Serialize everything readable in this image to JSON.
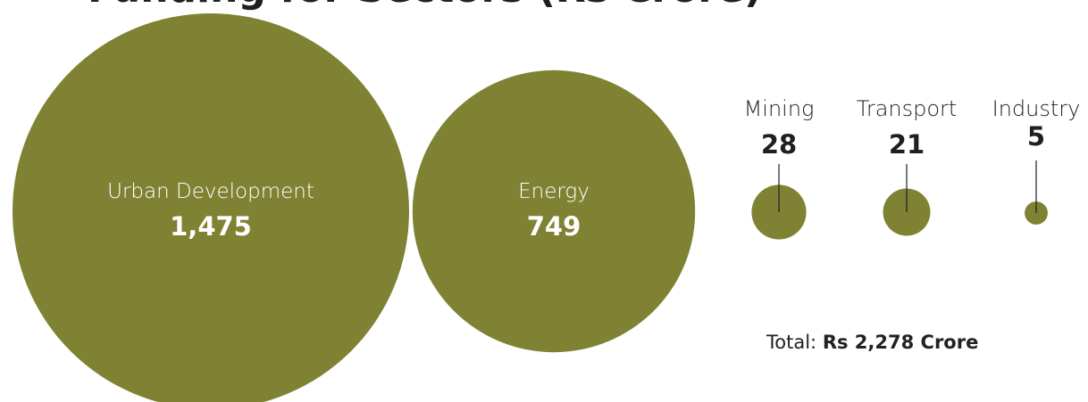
{
  "title": "Funding for Sectors (Rs Crore)",
  "total_label": "Total:",
  "total_value": "Rs 2,278 Crore",
  "colors": {
    "bubble": "#7f8233",
    "inside_text": "#ffffff",
    "outside_text": "#1f1f1f",
    "leader": "#1f1f1f"
  },
  "chart_data": {
    "type": "bubble",
    "unit": "Rs Crore",
    "categories": [
      "Urban Development",
      "Energy",
      "Mining",
      "Transport",
      "Industry"
    ],
    "values": [
      1475,
      749,
      28,
      21,
      5
    ],
    "value_labels": [
      "1,475",
      "749",
      "28",
      "21",
      "5"
    ],
    "label_position": [
      "inside",
      "inside",
      "outside",
      "outside",
      "outside"
    ],
    "total": 2278
  }
}
